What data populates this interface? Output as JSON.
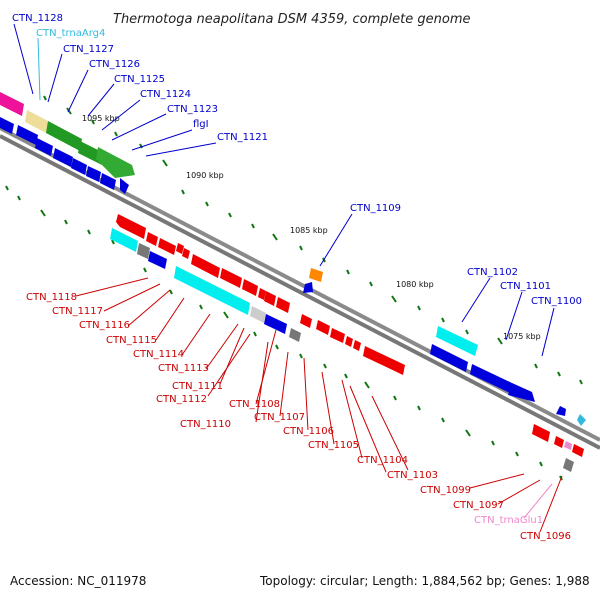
{
  "title": "Thermotoga neapolitana DSM 4359, complete genome",
  "footer": {
    "accession": "Accession: NC_011978",
    "summary": "Topology: circular; Length: 1,884,562 bp; Genes: 1,988"
  },
  "colors": {
    "forward_labels": "#0000cc",
    "reverse_labels": "#cc0000",
    "trna_forward": "#33bbdd",
    "trna_reverse": "#ee88cc",
    "backbone": "#808080",
    "ticks": "#117711"
  },
  "kbp_marks": [
    "1095 kbp",
    "1090 kbp",
    "1085 kbp",
    "1080 kbp",
    "1075 kbp"
  ],
  "forward_genes": [
    "CTN_1128",
    "CTN_trnaArg4",
    "CTN_1127",
    "CTN_1126",
    "CTN_1125",
    "CTN_1124",
    "CTN_1123",
    "flgI",
    "CTN_1121",
    "CTN_1109",
    "CTN_1102",
    "CTN_1101",
    "CTN_1100"
  ],
  "reverse_genes": [
    "CTN_1118",
    "CTN_1117",
    "CTN_1116",
    "CTN_1115",
    "CTN_1114",
    "CTN_1113",
    "CTN_1111",
    "CTN_1112",
    "CTN_1110",
    "CTN_1108",
    "CTN_1107",
    "CTN_1106",
    "CTN_1105",
    "CTN_1104",
    "CTN_1103",
    "CTN_1099",
    "CTN_1097",
    "CTN_trnaGlu1",
    "CTN_1096"
  ]
}
